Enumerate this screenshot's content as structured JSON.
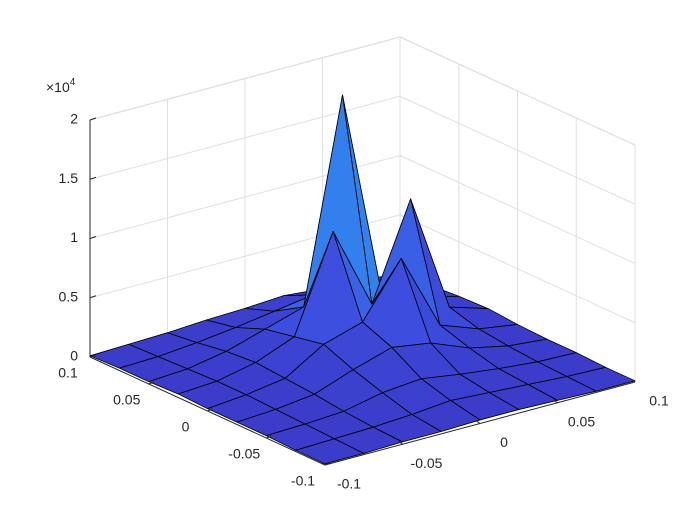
{
  "chart_data": {
    "type": "surface",
    "x": [
      -0.1,
      -0.075,
      -0.05,
      -0.025,
      0,
      0.025,
      0.05,
      0.075,
      0.1
    ],
    "y": [
      -0.1,
      -0.075,
      -0.05,
      -0.025,
      0,
      0.025,
      0.05,
      0.075,
      0.1
    ],
    "z": [
      [
        0.01,
        0.01,
        0.02,
        0.02,
        0.03,
        0.03,
        0.02,
        0.01,
        0.01
      ],
      [
        0.01,
        0.02,
        0.03,
        0.05,
        0.08,
        0.06,
        0.04,
        0.02,
        0.01
      ],
      [
        0.02,
        0.03,
        0.05,
        0.12,
        0.15,
        0.1,
        0.06,
        0.03,
        0.02
      ],
      [
        0.02,
        0.04,
        0.08,
        0.2,
        0.3,
        0.25,
        0.12,
        0.05,
        0.02
      ],
      [
        0.02,
        0.05,
        0.1,
        0.3,
        0.4,
        0.85,
        0.2,
        0.08,
        0.03
      ],
      [
        0.03,
        0.05,
        0.12,
        0.25,
        1.05,
        0.35,
        1.15,
        0.15,
        0.05
      ],
      [
        0.02,
        0.04,
        0.1,
        0.2,
        0.3,
        2.0,
        0.25,
        0.12,
        0.04
      ],
      [
        0.02,
        0.03,
        0.06,
        0.1,
        0.15,
        0.2,
        0.1,
        0.06,
        0.02
      ],
      [
        0.01,
        0.02,
        0.03,
        0.05,
        0.06,
        0.08,
        0.05,
        0.03,
        0.01
      ]
    ],
    "xlim": [
      -0.1,
      0.1
    ],
    "ylim": [
      -0.1,
      0.1
    ],
    "zlim": [
      0,
      2
    ],
    "xticks": [
      -0.1,
      -0.05,
      0,
      0.05,
      0.1
    ],
    "yticks": [
      -0.1,
      -0.05,
      0,
      0.05,
      0.1
    ],
    "zticks": [
      0,
      0.5,
      1,
      1.5,
      2
    ],
    "z_multiplier": {
      "base": "×10",
      "exponent": "4"
    },
    "grid": true,
    "colormap": [
      "#3b3bc8",
      "#3d50e0",
      "#2e8cf0",
      "#f5f51a"
    ],
    "edge_color": "#000000"
  }
}
